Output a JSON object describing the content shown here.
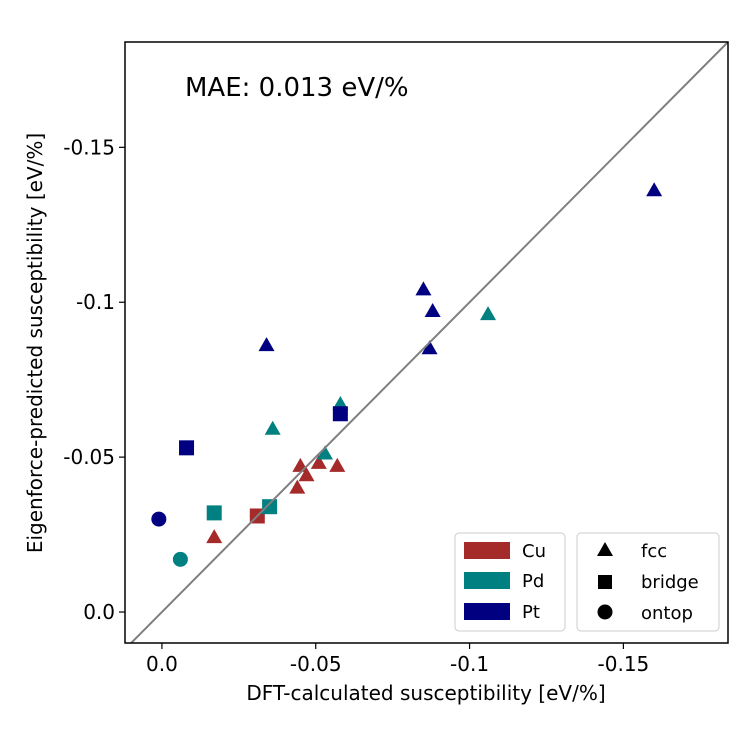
{
  "chart_data": {
    "type": "scatter",
    "title": "",
    "xlabel": "DFT-calculated susceptibility [eV/%]",
    "ylabel": "Eigenforce-predicted susceptibility [eV/%]",
    "annotation": "MAE: 0.013 eV/%",
    "xlim": [
      0.012,
      -0.184
    ],
    "ylim": [
      0.01,
      -0.184
    ],
    "x_ticks": [
      {
        "value": 0.0,
        "label": "0.0"
      },
      {
        "value": -0.05,
        "label": "-0.05"
      },
      {
        "value": -0.1,
        "label": "-0.1"
      },
      {
        "value": -0.15,
        "label": "-0.15"
      }
    ],
    "y_ticks": [
      {
        "value": 0.0,
        "label": "0.0"
      },
      {
        "value": -0.05,
        "label": "-0.05"
      },
      {
        "value": -0.1,
        "label": "-0.1"
      },
      {
        "value": -0.15,
        "label": "-0.15"
      }
    ],
    "grid": false,
    "reference_line": "y = x",
    "colors": {
      "Cu": "#a52a2a",
      "Pd": "#008080",
      "Pt": "#000080",
      "line": "#808080"
    },
    "legend_metals": {
      "placement": "bottom-right",
      "entries": [
        "Cu",
        "Pd",
        "Pt"
      ]
    },
    "legend_sites": {
      "placement": "bottom-right",
      "entries": [
        {
          "name": "fcc",
          "marker": "triangle"
        },
        {
          "name": "bridge",
          "marker": "square"
        },
        {
          "name": "ontop",
          "marker": "circle"
        }
      ]
    },
    "series": [
      {
        "name": "Cu",
        "site": "fcc",
        "x": [
          -0.017,
          -0.044,
          -0.045,
          -0.047,
          -0.051,
          -0.057
        ],
        "y": [
          -0.024,
          -0.04,
          -0.047,
          -0.044,
          -0.048,
          -0.047
        ]
      },
      {
        "name": "Cu",
        "site": "bridge",
        "x": [
          -0.031
        ],
        "y": [
          -0.031
        ]
      },
      {
        "name": "Pd",
        "site": "fcc",
        "x": [
          -0.036,
          -0.053,
          -0.058,
          -0.106
        ],
        "y": [
          -0.059,
          -0.051,
          -0.067,
          -0.096
        ]
      },
      {
        "name": "Pd",
        "site": "bridge",
        "x": [
          -0.017,
          -0.035
        ],
        "y": [
          -0.032,
          -0.034
        ]
      },
      {
        "name": "Pd",
        "site": "ontop",
        "x": [
          -0.006
        ],
        "y": [
          -0.017
        ]
      },
      {
        "name": "Pt",
        "site": "fcc",
        "x": [
          -0.034,
          -0.085,
          -0.087,
          -0.088,
          -0.16
        ],
        "y": [
          -0.086,
          -0.104,
          -0.085,
          -0.097,
          -0.136
        ]
      },
      {
        "name": "Pt",
        "site": "bridge",
        "x": [
          -0.008,
          -0.058
        ],
        "y": [
          -0.053,
          -0.064
        ]
      },
      {
        "name": "Pt",
        "site": "ontop",
        "x": [
          0.001
        ],
        "y": [
          -0.03
        ]
      }
    ]
  }
}
